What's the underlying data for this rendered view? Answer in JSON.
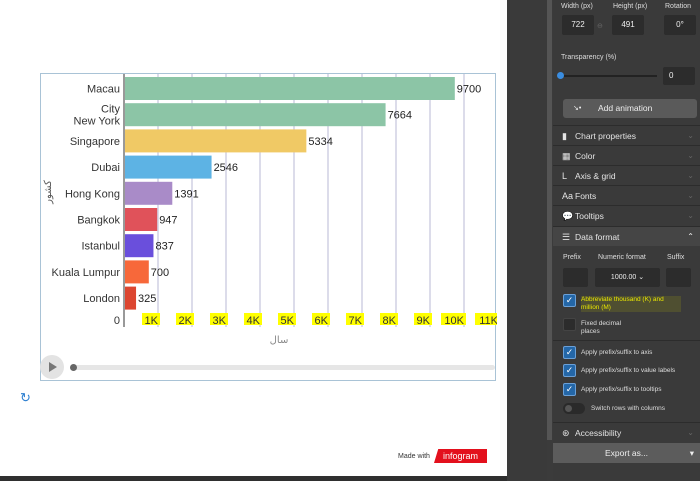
{
  "chart_data": {
    "type": "bar",
    "orientation": "horizontal",
    "categories": [
      "Macau",
      "City New York",
      "Singapore",
      "Dubai",
      "Hong Kong",
      "Bangkok",
      "Istanbul",
      "Kuala Lumpur",
      "London"
    ],
    "category_lines": [
      [
        "Macau"
      ],
      [
        "City",
        "New York"
      ],
      [
        "Singapore"
      ],
      [
        "Dubai"
      ],
      [
        "Hong Kong"
      ],
      [
        "Bangkok"
      ],
      [
        "Istanbul"
      ],
      [
        "Kuala Lumpur"
      ],
      [
        "London"
      ]
    ],
    "values": [
      9700,
      7664,
      5334,
      2546,
      1391,
      947,
      837,
      700,
      325
    ],
    "colors": [
      "#8cc5a6",
      "#8cc5a6",
      "#f0c965",
      "#5db3e4",
      "#a98bc8",
      "#e0525a",
      "#6a4fdc",
      "#f7683a",
      "#dc4630"
    ],
    "xlim": [
      0,
      11000
    ],
    "xticks": [
      "0",
      "1K",
      "2K",
      "3K",
      "4K",
      "5K",
      "6K",
      "7K",
      "8K",
      "9K",
      "10K",
      "11K"
    ],
    "xlabel": "سال",
    "ylabel": "کشور",
    "tick_highlight": "#ffff00",
    "grid": true
  },
  "footer": {
    "made_with": "Made with",
    "brand": "infogram"
  },
  "panel": {
    "width_label": "Width (px)",
    "width": "722",
    "height_label": "Height (px)",
    "height": "491",
    "rotation_label": "Rotation",
    "rotation": "0°",
    "transparency_label": "Transparency (%)",
    "transparency": "0",
    "add_animation": "Add animation",
    "sections": [
      "Chart properties",
      "Color",
      "Axis & grid",
      "Fonts",
      "Tooltips"
    ],
    "data_format": "Data format",
    "prefix": "Prefix",
    "numeric_format": "Numeric format",
    "numeric_value": "1000.00",
    "suffix": "Suffix",
    "abbrev": "Abbreviate thousand (K) and million (M)",
    "fixed": "Fixed decimal places",
    "apply_axis": "Apply prefix/suffix to axis",
    "apply_labels": "Apply prefix/suffix to value labels",
    "apply_tooltips": "Apply prefix/suffix to tooltips",
    "switch": "Switch rows with columns",
    "accessibility": "Accessibility",
    "export": "Export as..."
  }
}
